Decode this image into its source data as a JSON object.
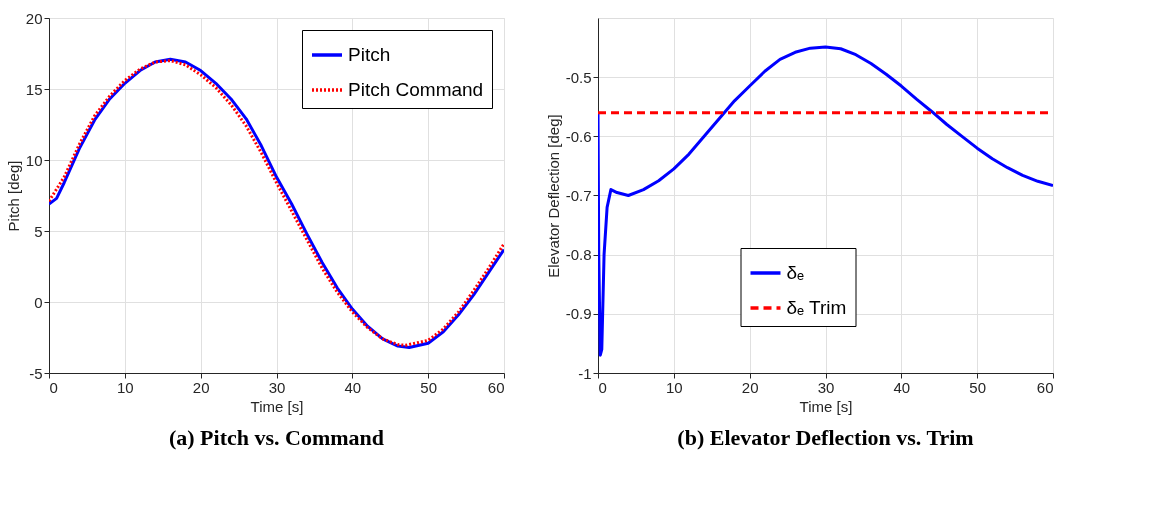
{
  "chart_data": [
    {
      "type": "line",
      "title": "(a) Pitch vs. Command",
      "xlabel": "Time [s]",
      "ylabel": "Pitch [deg]",
      "xlim": [
        0,
        60
      ],
      "xticks": [
        0,
        10,
        20,
        30,
        40,
        50,
        60
      ],
      "ylim": [
        -5,
        20
      ],
      "yticks": [
        -5,
        0,
        5,
        10,
        15,
        20
      ],
      "grid": true,
      "legend": "top right",
      "series": [
        {
          "name": "Pitch",
          "color": "#0000ff",
          "line_style": "solid",
          "x": [
            0,
            1,
            2,
            4,
            6,
            8,
            10,
            12,
            14,
            16,
            18,
            20,
            22,
            24,
            26,
            28,
            30,
            32,
            34,
            36,
            38,
            40,
            42,
            44,
            46,
            47.5,
            50,
            52,
            54,
            56,
            58,
            60
          ],
          "values": [
            6.9,
            7.3,
            8.4,
            10.8,
            12.8,
            14.3,
            15.4,
            16.3,
            16.9,
            17.1,
            16.9,
            16.3,
            15.4,
            14.3,
            12.9,
            11.0,
            8.8,
            6.9,
            4.8,
            2.8,
            1.0,
            -0.5,
            -1.7,
            -2.6,
            -3.1,
            -3.2,
            -2.9,
            -2.1,
            -0.9,
            0.5,
            2.1,
            3.7
          ]
        },
        {
          "name": "Pitch Command",
          "color": "#ff0000",
          "line_style": "dotted",
          "x": [
            0,
            2,
            4,
            6,
            8,
            10,
            12,
            14,
            16,
            18,
            20,
            22,
            24,
            26,
            28,
            30,
            32,
            34,
            36,
            38,
            40,
            42,
            44,
            46,
            47,
            50,
            52,
            54,
            56,
            58,
            60
          ],
          "values": [
            7.1,
            8.8,
            11.1,
            13.1,
            14.5,
            15.6,
            16.4,
            16.9,
            17.0,
            16.7,
            16.0,
            15.1,
            13.9,
            12.4,
            10.5,
            8.4,
            6.4,
            4.4,
            2.4,
            0.7,
            -0.7,
            -1.8,
            -2.6,
            -3.0,
            -3.05,
            -2.7,
            -1.9,
            -0.7,
            0.8,
            2.4,
            4.1
          ]
        }
      ]
    },
    {
      "type": "line",
      "title": "(b) Elevator Deflection vs. Trim",
      "xlabel": "Time [s]",
      "ylabel": "Elevator Deflection [deg]",
      "xlim": [
        0,
        60
      ],
      "xticks": [
        0,
        10,
        20,
        30,
        40,
        50,
        60
      ],
      "ylim": [
        -1,
        -0.4
      ],
      "yticks": [
        -1,
        -0.9,
        -0.8,
        -0.7,
        -0.6,
        -0.5
      ],
      "grid": true,
      "legend": "bottom",
      "series": [
        {
          "name": "δₑ",
          "color": "#0000ff",
          "line_style": "solid",
          "x": [
            0,
            0.1,
            0.3,
            0.5,
            0.8,
            1.2,
            1.7,
            2.5,
            4,
            6,
            8,
            10,
            12,
            14,
            16,
            18,
            20,
            22,
            24,
            26,
            28,
            30,
            32,
            34,
            36,
            38,
            40,
            42,
            44,
            46,
            48,
            50,
            52,
            54,
            56,
            58,
            60
          ],
          "values": [
            -0.56,
            -0.8,
            -0.97,
            -0.96,
            -0.8,
            -0.72,
            -0.69,
            -0.695,
            -0.7,
            -0.69,
            -0.675,
            -0.655,
            -0.63,
            -0.6,
            -0.57,
            -0.54,
            -0.515,
            -0.49,
            -0.47,
            -0.458,
            -0.451,
            -0.449,
            -0.452,
            -0.462,
            -0.477,
            -0.495,
            -0.515,
            -0.537,
            -0.558,
            -0.58,
            -0.6,
            -0.62,
            -0.638,
            -0.653,
            -0.666,
            -0.676,
            -0.683
          ]
        },
        {
          "name": "δₑ Trim",
          "color": "#ff0000",
          "line_style": "dashed",
          "x": [
            0,
            60
          ],
          "values": [
            -0.56,
            -0.56
          ]
        }
      ]
    }
  ]
}
